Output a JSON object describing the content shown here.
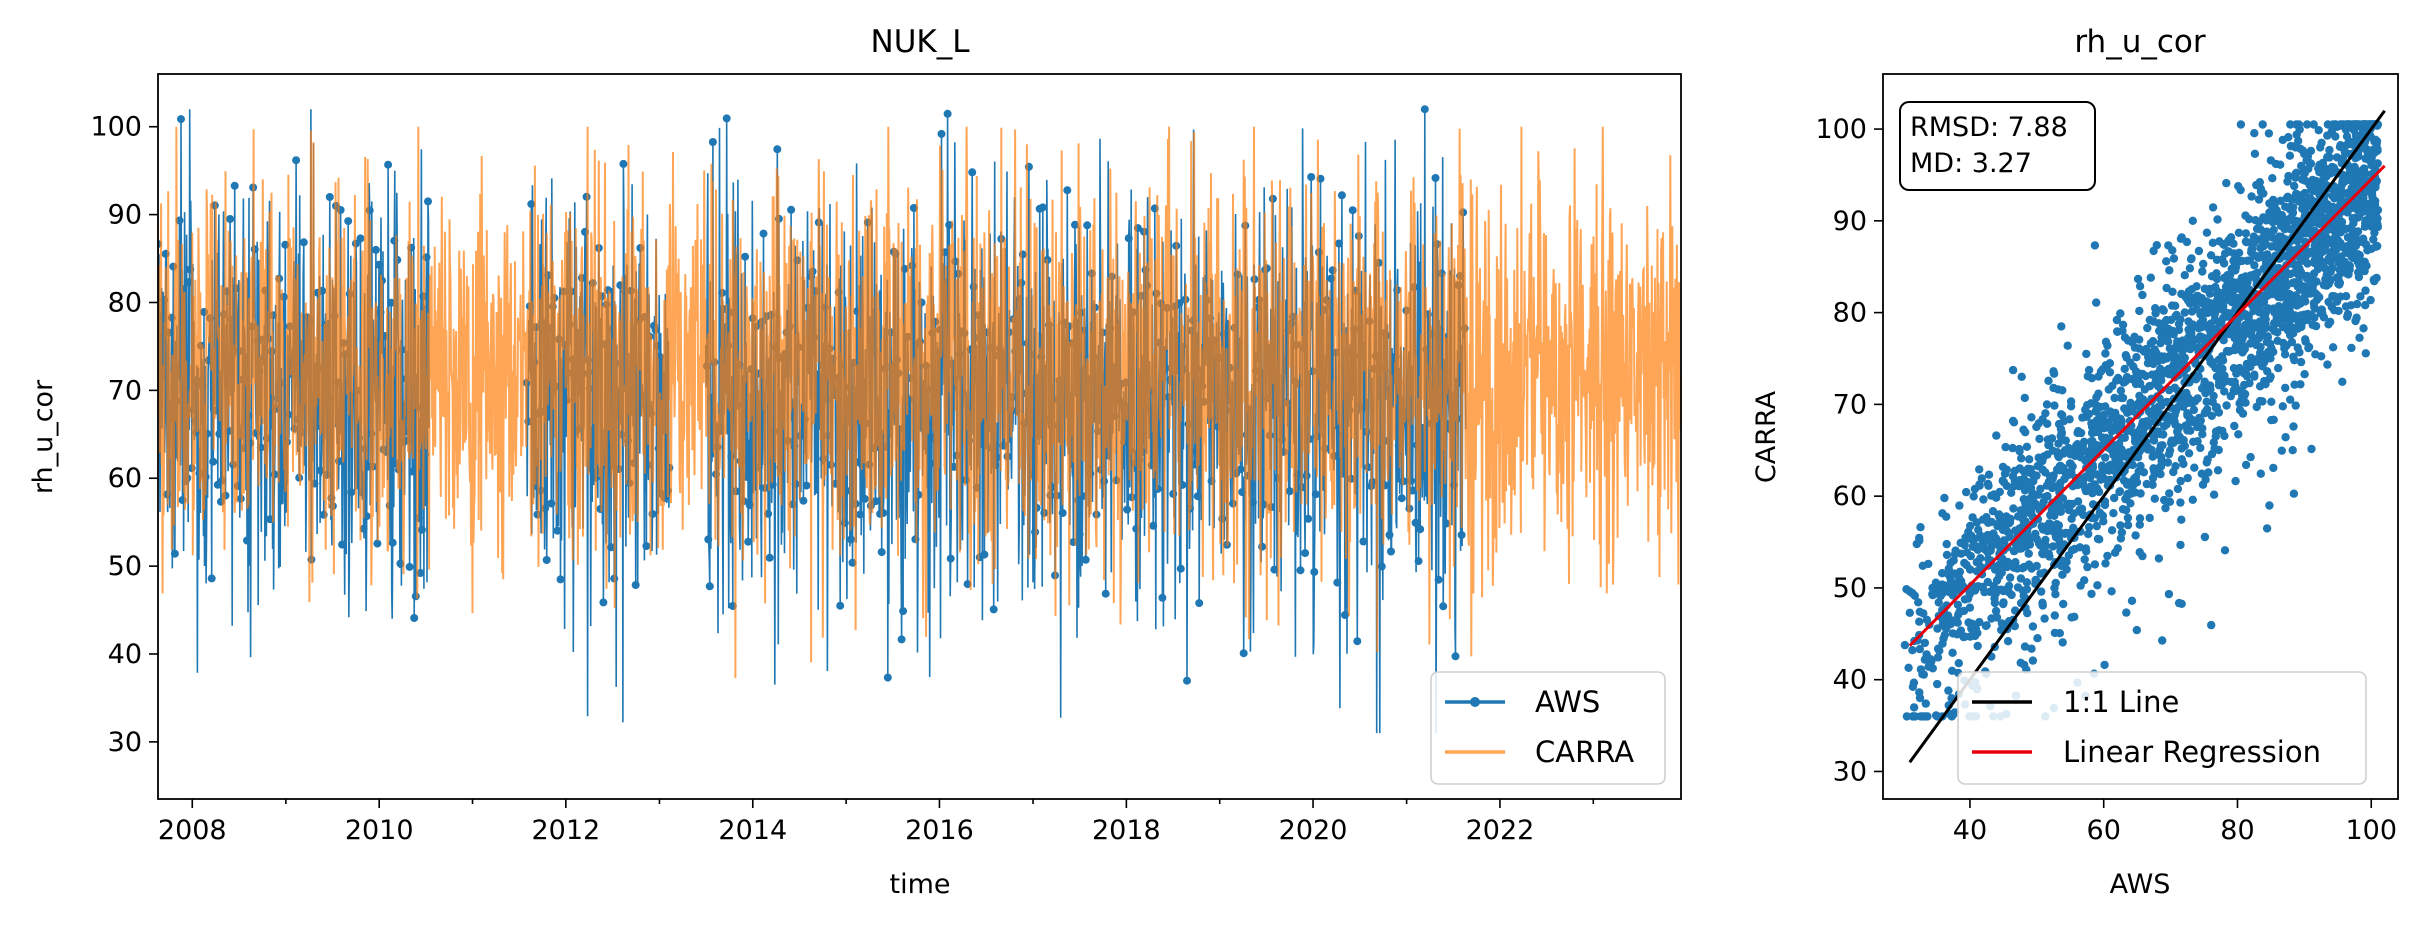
{
  "chart_data": [
    {
      "type": "line",
      "title": "NUK_L",
      "xlabel": "time",
      "ylabel": "rh_u_cor",
      "xlim": [
        "2007-08-20",
        "2023-12-10"
      ],
      "ylim": [
        23.5,
        106
      ],
      "x_ticks": [
        "2008",
        "2010",
        "2012",
        "2014",
        "2016",
        "2018",
        "2020",
        "2022"
      ],
      "y_ticks": [
        30,
        40,
        50,
        60,
        70,
        80,
        90,
        100
      ],
      "legend": {
        "placement": "lower-right",
        "entries": [
          "AWS",
          "CARRA"
        ]
      },
      "grid": false,
      "series": [
        {
          "name": "AWS",
          "color": "#1f77b4",
          "marker": "dot",
          "data_periods": [
            [
              "2007-08-20",
              "2010-07-15"
            ],
            [
              "2011-08-01",
              "2013-02-10"
            ],
            [
              "2013-07-01",
              "2021-08-20"
            ]
          ],
          "approx_mean": 70,
          "approx_range": [
            31,
            102
          ]
        },
        {
          "name": "CARRA",
          "color": "#ff7f0e",
          "opacity": 0.7,
          "data_periods": [
            [
              "2007-08-20",
              "2023-12-10"
            ]
          ],
          "approx_mean": 72,
          "approx_range": [
            36,
            100
          ]
        }
      ]
    },
    {
      "type": "scatter",
      "title": "rh_u_cor",
      "xlabel": "AWS",
      "ylabel": "CARRA",
      "xlim": [
        27,
        104
      ],
      "ylim": [
        27,
        106
      ],
      "x_ticks": [
        40,
        60,
        80,
        100
      ],
      "y_ticks": [
        30,
        40,
        50,
        60,
        70,
        80,
        90,
        100
      ],
      "annotation": {
        "lines": [
          "RMSD: 7.88",
          "MD: 3.27"
        ],
        "placement": "top-left"
      },
      "legend": {
        "placement": "lower-right",
        "entries": [
          "1:1 Line",
          "Linear Regression"
        ]
      },
      "grid": false,
      "points_color": "#1f77b4",
      "one_to_one": {
        "color": "#000000",
        "x": [
          31,
          102
        ],
        "y": [
          31,
          102
        ]
      },
      "regression": {
        "color": "#e8000b",
        "x": [
          31,
          102
        ],
        "y": [
          43.7,
          96
        ]
      }
    }
  ]
}
